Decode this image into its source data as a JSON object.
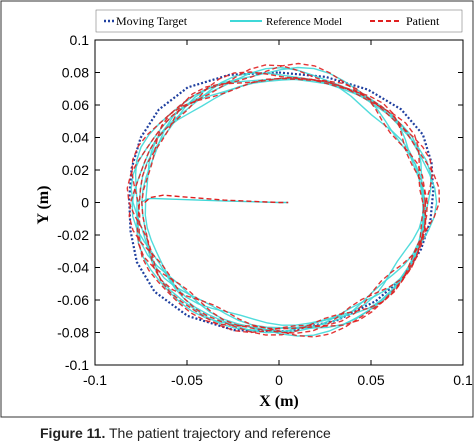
{
  "figure": {
    "caption_label": "Figure 11.",
    "caption_text": "The patient trajectory and reference"
  },
  "chart_data": {
    "type": "line",
    "title": "",
    "xlabel": "X (m)",
    "ylabel": "Y (m)",
    "xlim": [
      -0.1,
      0.1
    ],
    "ylim": [
      -0.1,
      0.1
    ],
    "xticks": [
      -0.1,
      -0.05,
      0,
      0.05,
      0.1
    ],
    "xtick_labels": [
      "-0.1",
      "-0.05",
      "0",
      "0.05",
      "0.1"
    ],
    "yticks": [
      -0.1,
      -0.08,
      -0.06,
      -0.04,
      -0.02,
      0,
      0.02,
      0.04,
      0.06,
      0.08,
      0.1
    ],
    "ytick_labels": [
      "-0.1",
      "-0.08",
      "-0.06",
      "-0.04",
      "-0.02",
      "0",
      "0.02",
      "0.04",
      "0.06",
      "0.08",
      "0.1"
    ],
    "grid": false,
    "legend_position": "top",
    "series": [
      {
        "name": "Moving Target",
        "color": "#1f3f9f",
        "style": "dotted",
        "points": [
          [
            0.0,
            0.08
          ],
          [
            0.0254,
            0.0773
          ],
          [
            0.0483,
            0.0695
          ],
          [
            0.0664,
            0.0573
          ],
          [
            0.0782,
            0.0418
          ],
          [
            0.0829,
            0.0244
          ],
          [
            0.0838,
            0.0067
          ],
          [
            0.0823,
            -0.0112
          ],
          [
            0.0772,
            -0.0288
          ],
          [
            0.0678,
            -0.0457
          ],
          [
            0.0526,
            -0.0607
          ],
          [
            0.0312,
            -0.0727
          ],
          [
            0.0042,
            -0.0793
          ],
          [
            -0.0246,
            -0.0785
          ],
          [
            -0.0497,
            -0.0698
          ],
          [
            -0.0676,
            -0.0549
          ],
          [
            -0.0773,
            -0.0366
          ],
          [
            -0.0807,
            -0.0174
          ],
          [
            -0.0814,
            0.0018
          ],
          [
            -0.0801,
            0.021
          ],
          [
            -0.0752,
            0.0398
          ],
          [
            -0.0654,
            0.0571
          ],
          [
            -0.0496,
            0.0708
          ],
          [
            -0.0269,
            0.0786
          ],
          [
            0.0,
            0.08
          ]
        ]
      },
      {
        "name": "Reference Model",
        "color": "#3fd8d8",
        "style": "solid",
        "points": [
          [
            -0.075,
            0.0
          ],
          [
            -0.072,
            0.002
          ],
          [
            -0.0695,
            0.0025
          ],
          [
            -0.03,
            0.001
          ],
          [
            0.0,
            0.0
          ],
          [
            0.005,
            0.0
          ]
        ]
      },
      {
        "name": "Patient",
        "color": "#e02020",
        "style": "dashed",
        "points": [
          [
            -0.073,
            0.0
          ],
          [
            -0.07,
            0.003
          ],
          [
            -0.063,
            0.0045
          ],
          [
            -0.03,
            0.0015
          ],
          [
            0.0,
            0.0
          ],
          [
            0.005,
            0.0
          ]
        ]
      }
    ]
  }
}
